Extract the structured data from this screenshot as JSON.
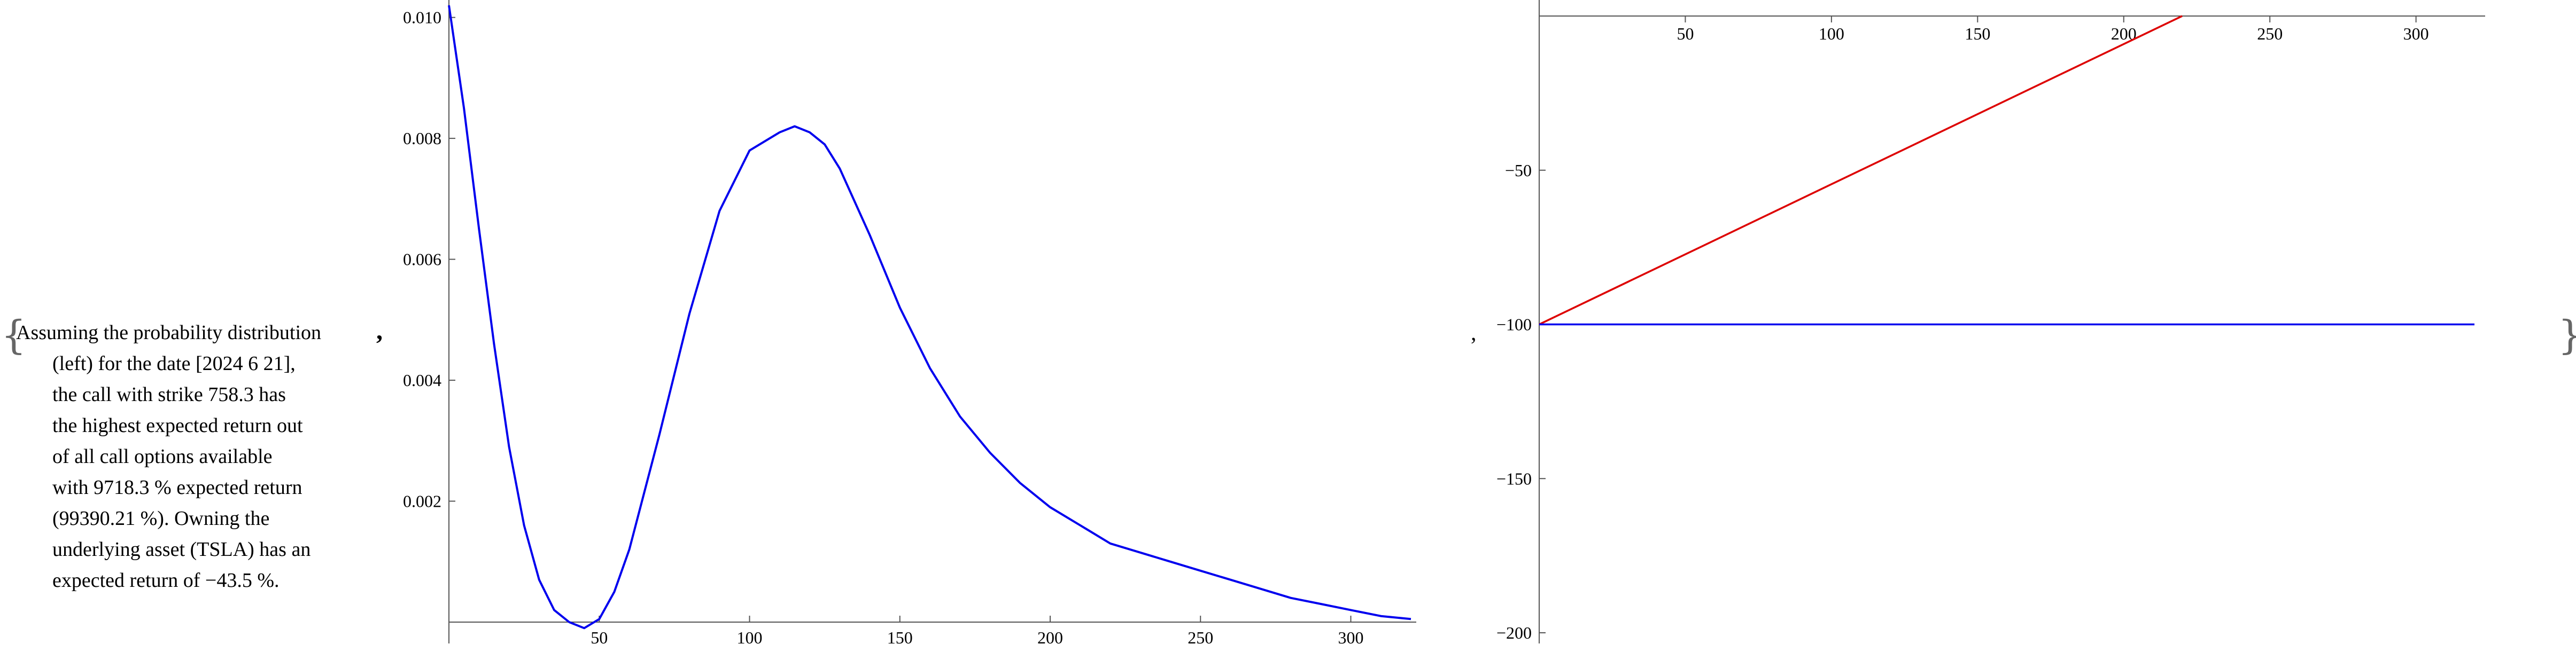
{
  "text": {
    "first_line": "Assuming the probability distribution",
    "rest_lines": [
      "(left) for the date [2024 6 21],",
      "the call with strike 758.3 has",
      "the highest expected return out",
      "of all call options available",
      "with 9718.3 % expected return",
      "(99390.21 %). Owning the",
      "underlying asset (TSLA) has an",
      "expected return of −43.5 %."
    ]
  },
  "punctuation": {
    "open_brace": "{",
    "close_brace": "}",
    "comma": ","
  },
  "colors": {
    "curve": "#0000ee",
    "red_line": "#dd0000",
    "axis": "#555555"
  },
  "chart_data": [
    {
      "type": "line",
      "xlim": [
        0,
        320
      ],
      "ylim": [
        0,
        0.0102
      ],
      "x_ticks": [
        50,
        100,
        150,
        200,
        250,
        300
      ],
      "y_ticks": [
        0.002,
        0.004,
        0.006,
        0.008,
        0.01
      ],
      "y_tick_labels": [
        "0.002",
        "0.004",
        "0.006",
        "0.008",
        "0.010"
      ],
      "series": [
        {
          "color": "#0000ee",
          "x": [
            0,
            5,
            10,
            15,
            20,
            25,
            30,
            35,
            40,
            45,
            50,
            55,
            60,
            70,
            80,
            90,
            100,
            110,
            115,
            120,
            125,
            130,
            140,
            150,
            160,
            170,
            180,
            190,
            200,
            210,
            220,
            230,
            240,
            250,
            260,
            270,
            280,
            290,
            300,
            310,
            320
          ],
          "y": [
            0.0102,
            0.0085,
            0.0065,
            0.0046,
            0.0029,
            0.0016,
            0.0007,
            0.0002,
            0.0,
            -0.0001,
            5e-05,
            0.0005,
            0.0012,
            0.0031,
            0.0051,
            0.0068,
            0.0078,
            0.0081,
            0.0082,
            0.0081,
            0.0079,
            0.0075,
            0.0064,
            0.0052,
            0.0042,
            0.0034,
            0.0028,
            0.0023,
            0.0019,
            0.0016,
            0.0013,
            0.00115,
            0.001,
            0.00085,
            0.0007,
            0.00055,
            0.0004,
            0.0003,
            0.0002,
            0.0001,
            5e-05
          ]
        }
      ]
    },
    {
      "type": "line",
      "xlim": [
        0,
        320
      ],
      "ylim": [
        -200,
        0
      ],
      "x_ticks": [
        50,
        100,
        150,
        200,
        250,
        300
      ],
      "y_ticks": [
        -50,
        -100,
        -150,
        -200
      ],
      "y_tick_labels": [
        "−50",
        "−100",
        "−150",
        "−200"
      ],
      "series": [
        {
          "color": "#dd0000",
          "x": [
            0,
            220
          ],
          "y": [
            -100,
            0
          ]
        },
        {
          "color": "#0000ee",
          "x": [
            0,
            320
          ],
          "y": [
            -100,
            -100
          ]
        }
      ]
    }
  ]
}
